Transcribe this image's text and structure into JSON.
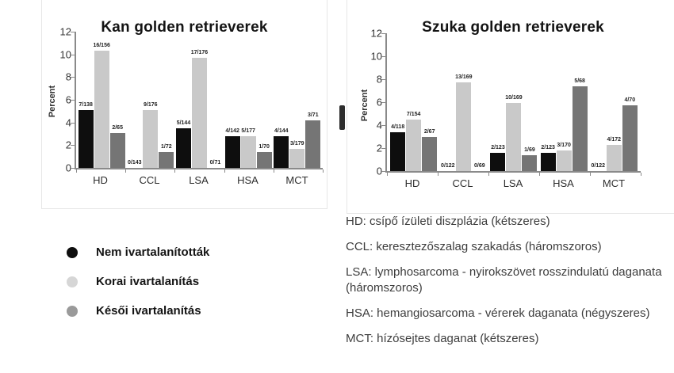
{
  "colors": {
    "intact": "#0e0e0e",
    "early": "#c9c9c9",
    "late": "#757575",
    "axis": "#8a8a8a"
  },
  "chart_data": [
    {
      "type": "bar",
      "title": "Kan golden retrieverek",
      "ylabel": "Percent",
      "ylim": [
        0,
        12
      ],
      "yticks": [
        0,
        2,
        4,
        6,
        8,
        10,
        12
      ],
      "grid": false,
      "legend_position": "below-left",
      "categories": [
        "HD",
        "CCL",
        "LSA",
        "HSA",
        "MCT"
      ],
      "series": [
        {
          "name": "Nem ivartalanították",
          "color_key": "intact",
          "values": [
            5.1,
            0,
            3.5,
            2.8,
            2.8
          ],
          "labels": [
            "7/138",
            "0/143",
            "5/144",
            "4/142",
            "4/144"
          ]
        },
        {
          "name": "Korai ivartalanítás",
          "color_key": "early",
          "values": [
            10.3,
            5.1,
            9.7,
            2.8,
            1.7
          ],
          "labels": [
            "16/156",
            "9/176",
            "17/176",
            "5/177",
            "3/179"
          ]
        },
        {
          "name": "Késői ivartalanítás",
          "color_key": "late",
          "values": [
            3.1,
            1.4,
            0,
            1.4,
            4.2
          ],
          "labels": [
            "2/65",
            "1/72",
            "0/71",
            "1/70",
            "3/71"
          ]
        }
      ]
    },
    {
      "type": "bar",
      "title": "Szuka golden retrieverek",
      "ylabel": "Percent",
      "ylim": [
        0,
        12
      ],
      "yticks": [
        0,
        2,
        4,
        6,
        8,
        10,
        12
      ],
      "grid": false,
      "legend_position": "below-left",
      "categories": [
        "HD",
        "CCL",
        "LSA",
        "HSA",
        "MCT"
      ],
      "series": [
        {
          "name": "Nem ivartalanították",
          "color_key": "intact",
          "values": [
            3.4,
            0,
            1.6,
            1.6,
            0
          ],
          "labels": [
            "4/118",
            "0/122",
            "2/123",
            "2/123",
            "0/122"
          ]
        },
        {
          "name": "Korai ivartalanítás",
          "color_key": "early",
          "values": [
            4.5,
            7.7,
            5.9,
            1.8,
            2.3
          ],
          "labels": [
            "7/154",
            "13/169",
            "10/169",
            "3/170",
            "4/172"
          ]
        },
        {
          "name": "Késői ivartalanítás",
          "color_key": "late",
          "values": [
            3.0,
            0,
            1.4,
            7.4,
            5.7
          ],
          "labels": [
            "2/67",
            "0/69",
            "1/69",
            "5/68",
            "4/70"
          ]
        }
      ]
    }
  ],
  "legend": {
    "items": [
      {
        "label": "Nem ivartalanították",
        "color": "#0e0e0e"
      },
      {
        "label": "Korai ivartalanítás",
        "color": "#d6d6d6"
      },
      {
        "label": "Késői ivartalanítás",
        "color": "#9a9a9a"
      }
    ]
  },
  "definitions": {
    "items": [
      "HD: csípő ízületi diszplázia (kétszeres)",
      "CCL: keresztezőszalag szakadás (háromszoros)",
      "LSA: lymphosarcoma - nyirokszövet rosszindulatú daganata (háromszoros)",
      "HSA: hemangiosarcoma - vérerek daganata (négyszeres)",
      "MCT: hízósejtes daganat (kétszeres)"
    ]
  }
}
